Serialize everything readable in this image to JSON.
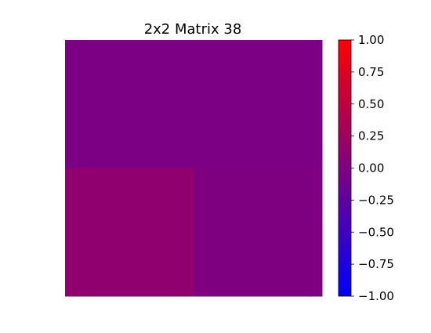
{
  "chart_data": {
    "type": "heatmap",
    "title": "2x2 Matrix 38",
    "values": [
      [
        -0.03,
        -0.03
      ],
      [
        0.13,
        -0.01
      ]
    ],
    "colorbar": {
      "min": -1.0,
      "max": 1.0,
      "ticks": [
        1.0,
        0.75,
        0.5,
        0.25,
        0.0,
        -0.25,
        -0.5,
        -0.75,
        -1.0
      ],
      "tick_labels": [
        "1.00",
        "0.75",
        "0.50",
        "0.25",
        "0.00",
        "−0.25",
        "−0.50",
        "−0.75",
        "−1.00"
      ],
      "colors": [
        "#0000ff",
        "#ff0000"
      ]
    },
    "axes_visible": false
  }
}
